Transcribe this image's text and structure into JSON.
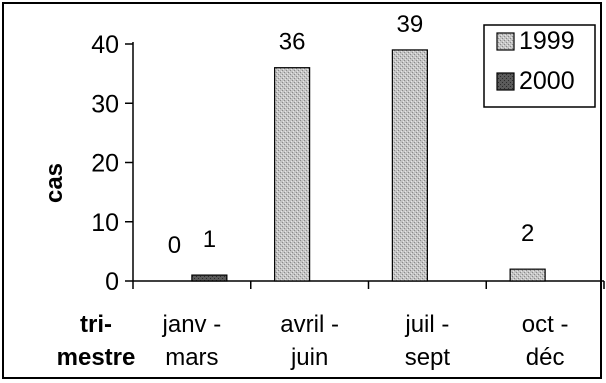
{
  "chart_data": {
    "type": "bar",
    "categories": [
      [
        "janv -",
        "mars"
      ],
      [
        "avril -",
        "juin"
      ],
      [
        "juil -",
        "sept"
      ],
      [
        "oct -",
        "déc"
      ]
    ],
    "series": [
      {
        "name": "1999",
        "values": [
          0,
          36,
          39,
          2
        ],
        "labels": [
          "0",
          "36",
          "39",
          "2"
        ],
        "color": "#b8b8b8"
      },
      {
        "name": "2000",
        "values": [
          1,
          0,
          0,
          0
        ],
        "labels": [
          "1",
          "",
          "",
          ""
        ],
        "color": "#555555"
      }
    ],
    "ylabel": "cas",
    "xlabel": [
      "tri-",
      "mestre"
    ],
    "ylim": [
      0,
      40
    ],
    "yticks": [
      0,
      10,
      20,
      30,
      40
    ],
    "legend": "top-right",
    "grid": false
  }
}
